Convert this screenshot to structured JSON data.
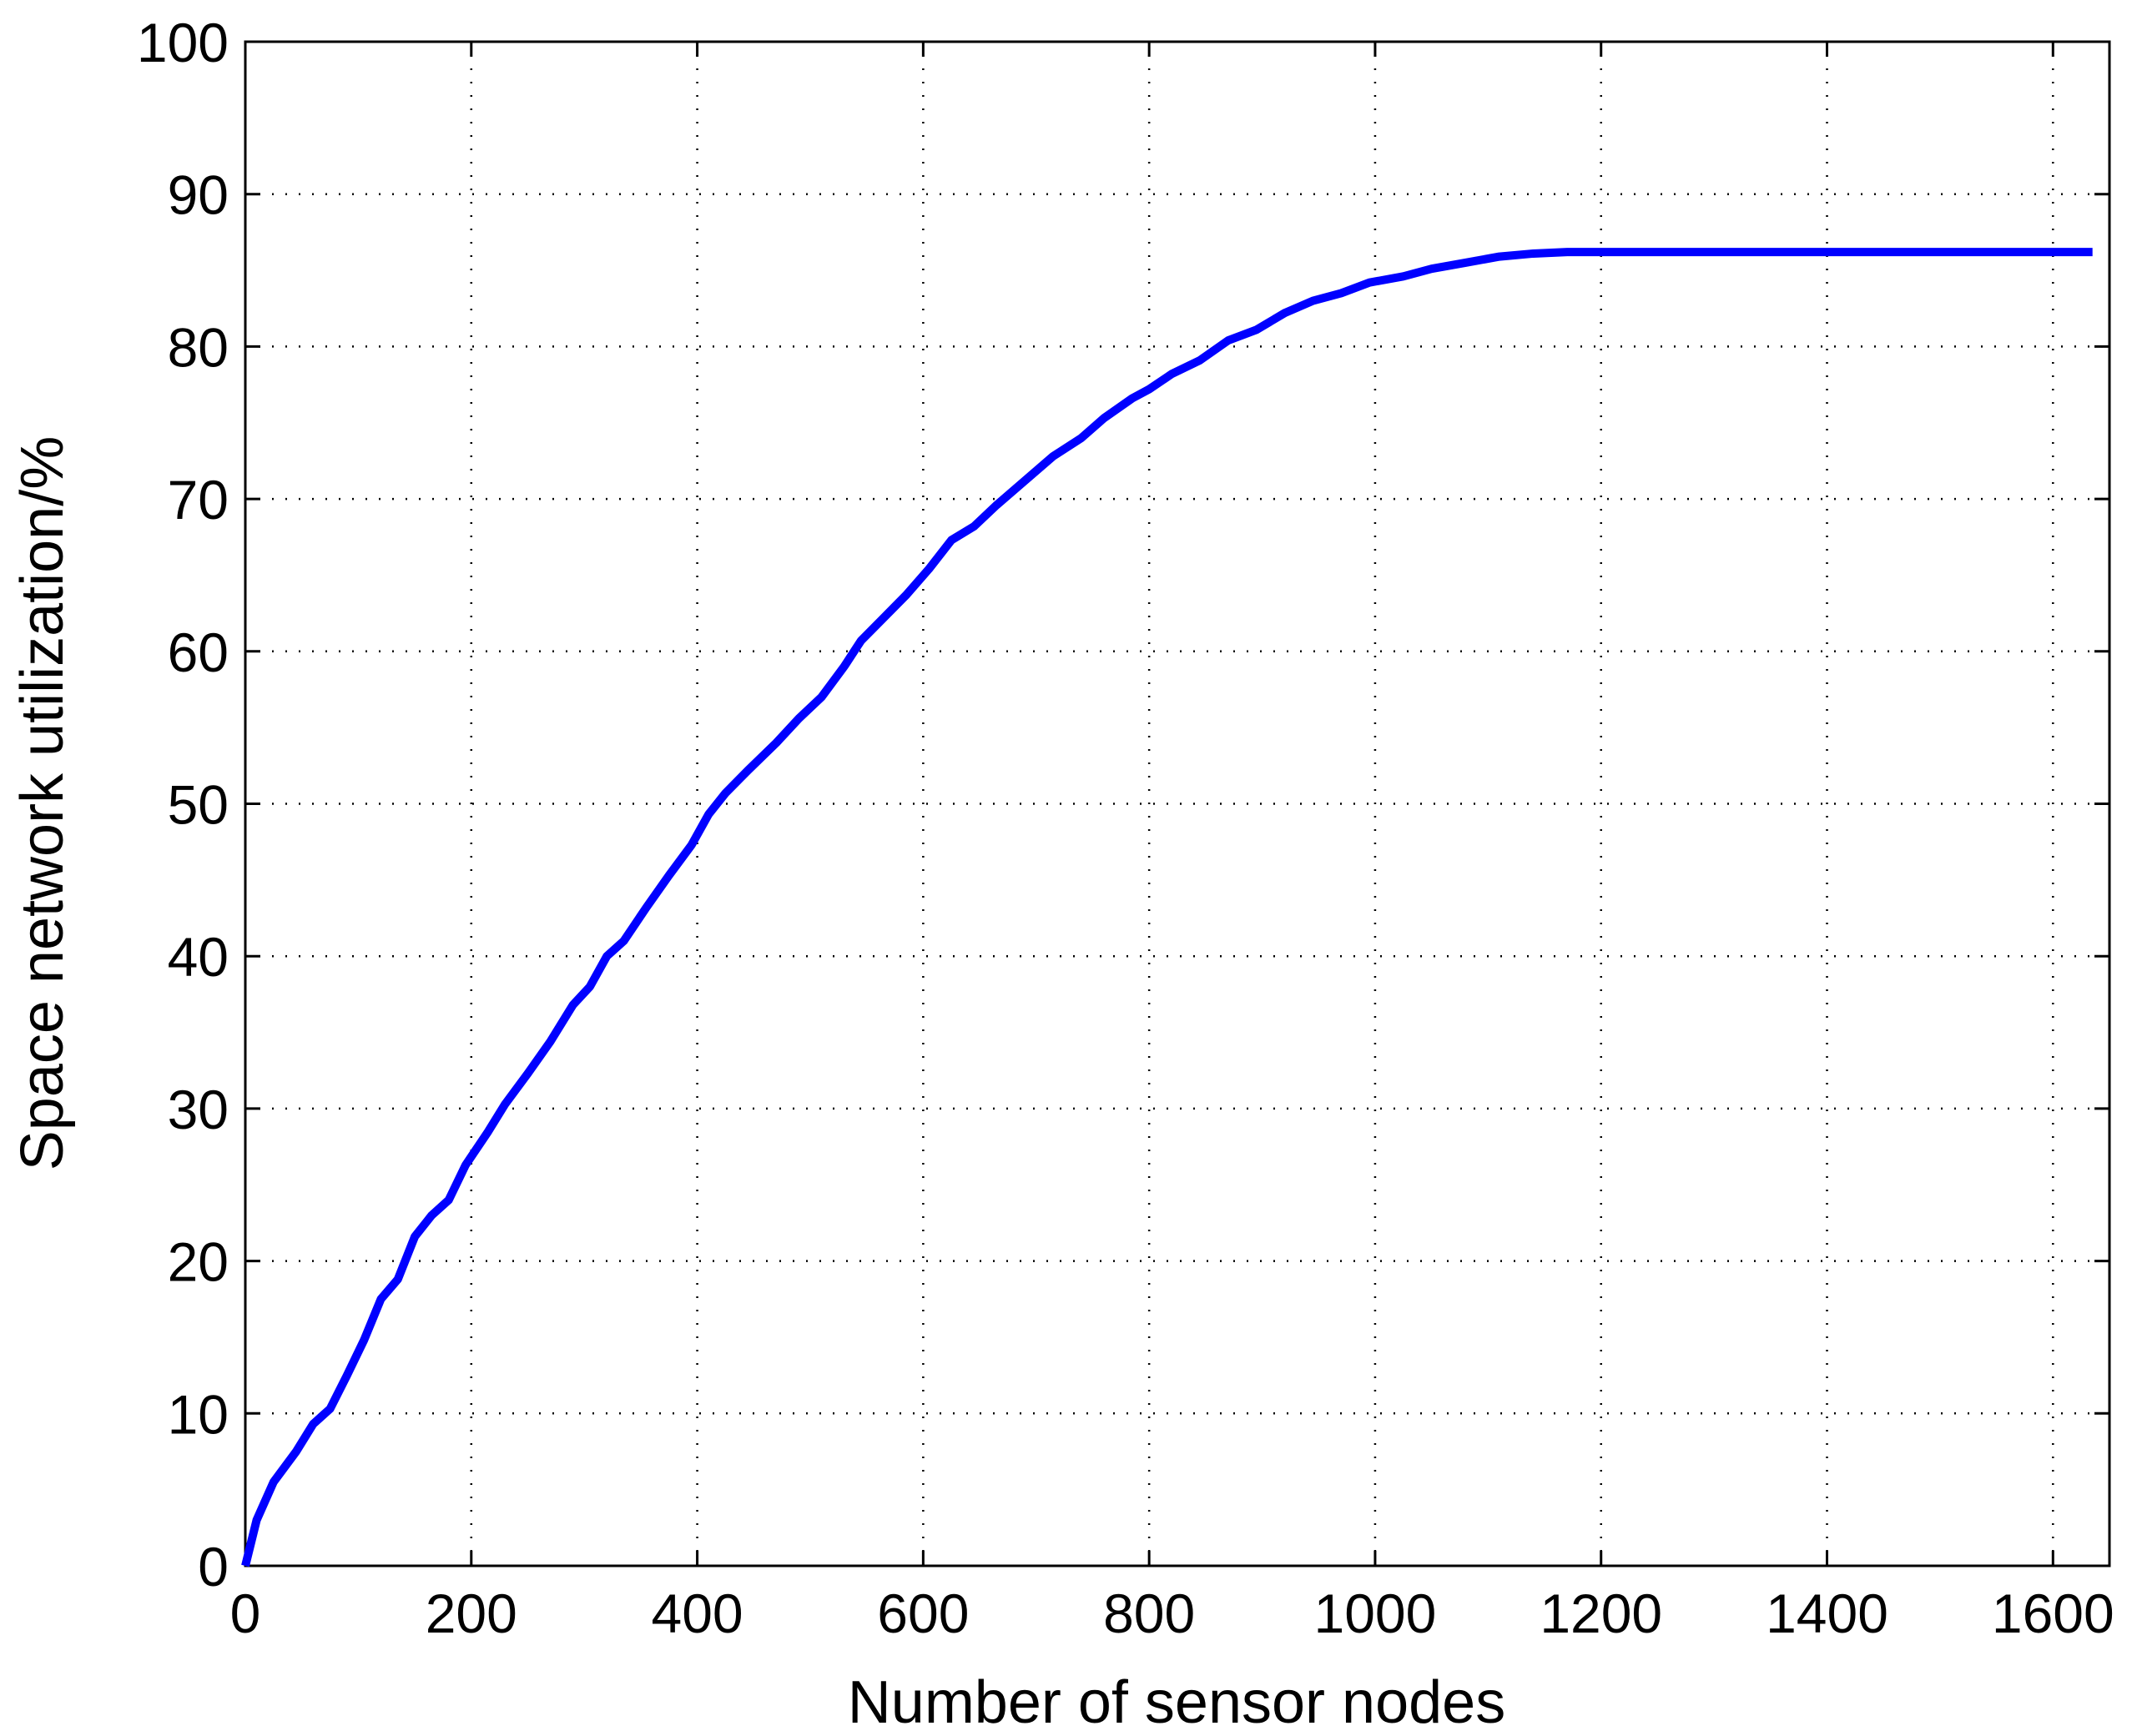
{
  "chart_data": {
    "type": "line",
    "x_label": "Number of sensor nodes",
    "y_label": "Space network utilization/%",
    "xlim": [
      0,
      1650
    ],
    "xticks": [
      0,
      200,
      400,
      600,
      800,
      1000,
      1200,
      1400,
      1600
    ],
    "ylim": [
      0,
      100
    ],
    "yticks": [
      0,
      10,
      20,
      30,
      40,
      50,
      60,
      70,
      80,
      90,
      100
    ],
    "grid": true,
    "series": [
      {
        "color": "#0000ff",
        "x": [
          0,
          10,
          25,
          45,
          60,
          75,
          90,
          105,
          120,
          135,
          150,
          165,
          180,
          195,
          215,
          230,
          250,
          270,
          290,
          305,
          320,
          335,
          355,
          375,
          395,
          410,
          425,
          445,
          470,
          490,
          510,
          530,
          545,
          565,
          585,
          605,
          625,
          645,
          665,
          690,
          715,
          740,
          760,
          785,
          800,
          820,
          845,
          870,
          895,
          920,
          945,
          970,
          995,
          1025,
          1050,
          1080,
          1110,
          1140,
          1170,
          1200,
          1300,
          1400,
          1500,
          1635
        ],
        "values": [
          0,
          3,
          5.5,
          7.5,
          9.3,
          10.3,
          12.5,
          14.8,
          17.5,
          18.8,
          21.6,
          23,
          24,
          26.3,
          28.5,
          30.3,
          32.3,
          34.4,
          36.8,
          38,
          40,
          41,
          43.2,
          45.3,
          47.3,
          49.3,
          50.7,
          52.2,
          54,
          55.6,
          57,
          59,
          60.7,
          62.2,
          63.7,
          65.4,
          67.3,
          68.2,
          69.6,
          71.2,
          72.8,
          74,
          75.3,
          76.6,
          77.2,
          78.2,
          79.1,
          80.4,
          81.1,
          82.2,
          83,
          83.5,
          84.2,
          84.6,
          85.1,
          85.5,
          85.9,
          86.1,
          86.2,
          86.2,
          86.2,
          86.2,
          86.2,
          86.2
        ]
      }
    ]
  }
}
